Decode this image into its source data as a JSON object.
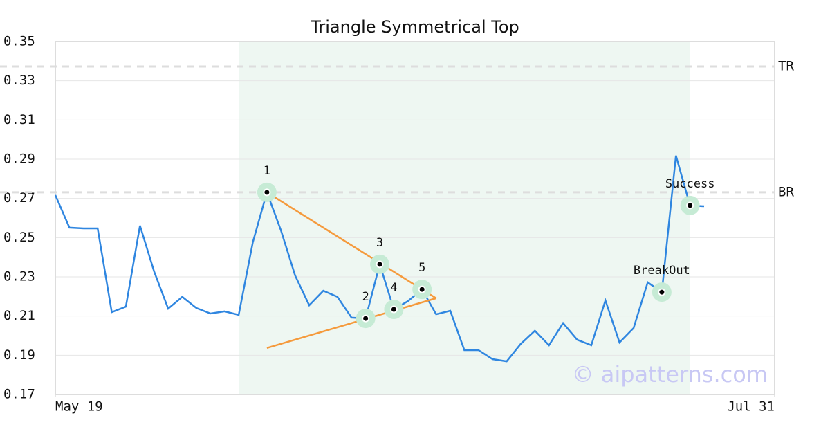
{
  "chart_data": {
    "type": "line",
    "title": "Triangle Symmetrical Top",
    "values": [
      0.2717,
      0.2551,
      0.2547,
      0.2547,
      0.212,
      0.2148,
      0.2561,
      0.2328,
      0.2138,
      0.2198,
      0.2141,
      0.2113,
      0.2124,
      0.2106,
      0.2476,
      0.2731,
      0.2536,
      0.2307,
      0.2155,
      0.2229,
      0.2198,
      0.2092,
      0.2088,
      0.2364,
      0.2134,
      0.2176,
      0.2236,
      0.2109,
      0.2127,
      0.1926,
      0.1926,
      0.188,
      0.1869,
      0.1958,
      0.2025,
      0.1951,
      0.2064,
      0.1979,
      0.1951,
      0.218,
      0.1965,
      0.2039,
      0.2272,
      0.2222,
      0.2918,
      0.2664,
      0.266
    ],
    "color": "#2f86e0",
    "xlim": [
      0,
      51
    ],
    "xticks": [
      {
        "value": 0,
        "label": "May 19"
      },
      {
        "value": 51,
        "label": "Jul 31"
      }
    ],
    "ylim": [
      0.17,
      0.35
    ],
    "yticks": [
      0.17,
      0.19,
      0.21,
      0.23,
      0.25,
      0.27,
      0.29,
      0.31,
      0.33,
      0.35
    ],
    "grid": true,
    "highlight_range": [
      13,
      45
    ],
    "levels": [
      {
        "label": "TR",
        "value": 0.3373
      },
      {
        "label": "BR",
        "value": 0.2731
      }
    ],
    "trendline_color": "#f59a3c",
    "trendlines": [
      {
        "x": [
          15,
          27
        ],
        "values": [
          0.2731,
          0.2191
        ]
      },
      {
        "x": [
          15,
          27
        ],
        "values": [
          0.1937,
          0.2191
        ]
      }
    ],
    "points": [
      {
        "label": "1",
        "x": 15,
        "value": 0.2731
      },
      {
        "label": "2",
        "x": 22,
        "value": 0.2088
      },
      {
        "label": "3",
        "x": 23,
        "value": 0.2364
      },
      {
        "label": "4",
        "x": 24,
        "value": 0.2134
      },
      {
        "label": "5",
        "x": 26,
        "value": 0.2236
      },
      {
        "label": "BreakOut",
        "x": 43,
        "value": 0.2222
      },
      {
        "label": "Success",
        "x": 45,
        "value": 0.2664
      }
    ],
    "watermark": "© aipatterns.com"
  }
}
